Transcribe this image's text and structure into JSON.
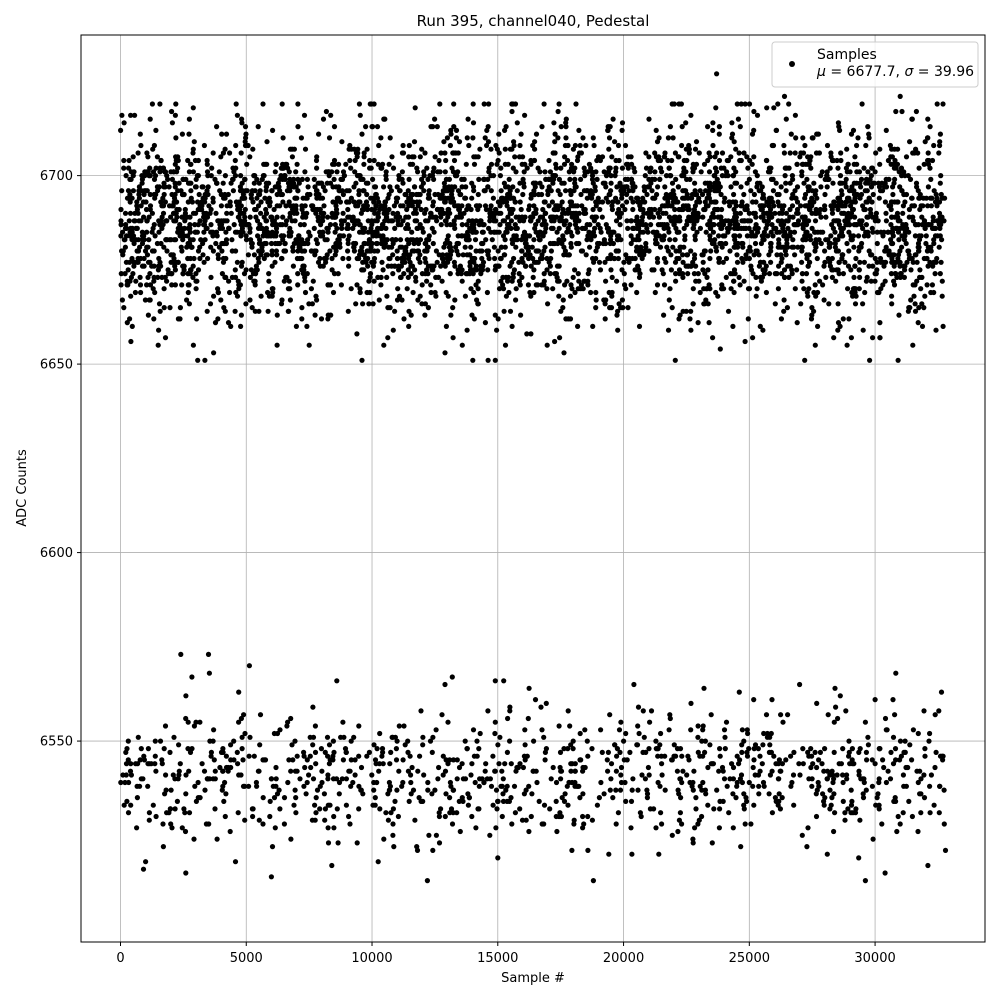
{
  "chart_data": {
    "type": "scatter",
    "title": "Run 395, channel040, Pedestal",
    "xlabel": "Sample #",
    "ylabel": "ADC Counts",
    "xlim": [
      -1570,
      34370
    ],
    "ylim": [
      6496.7,
      6737.3
    ],
    "xticks": [
      0,
      5000,
      10000,
      15000,
      20000,
      25000,
      30000
    ],
    "yticks": [
      6550,
      6600,
      6650,
      6700
    ],
    "grid": true,
    "legend_position": "top-right",
    "colors": {
      "points": "#000000",
      "grid": "#b0b0b0",
      "axes": "#000000",
      "legend_border": "#cccccc"
    },
    "legend": {
      "label": "Samples",
      "mu_symbol": "μ",
      "mu_value": " = 6677.7, ",
      "sigma_symbol": "σ",
      "sigma_value": " = 39.96"
    },
    "series": [
      {
        "name": "Samples",
        "marker": "circle",
        "x_range": [
          0,
          32768
        ],
        "bands": [
          {
            "center": 6688,
            "core_halfwidth": 17,
            "tail_min": 6651,
            "tail_max": 6719,
            "fraction": 0.8
          },
          {
            "center": 6541,
            "core_halfwidth": 12,
            "tail_min": 6513,
            "tail_max": 6573,
            "fraction": 0.2
          }
        ],
        "points": [
          {
            "x": 23700,
            "y": 6727
          },
          {
            "x": 3500,
            "y": 6573
          },
          {
            "x": 9600,
            "y": 6651
          },
          {
            "x": 14900,
            "y": 6651
          },
          {
            "x": 27200,
            "y": 6651
          },
          {
            "x": 12900,
            "y": 6653
          },
          {
            "x": 1500,
            "y": 6655
          },
          {
            "x": 2900,
            "y": 6655
          },
          {
            "x": 29900,
            "y": 6657
          },
          {
            "x": 31500,
            "y": 6655
          },
          {
            "x": 26400,
            "y": 6721
          },
          {
            "x": 31000,
            "y": 6721
          },
          {
            "x": 2200,
            "y": 6719
          },
          {
            "x": 4600,
            "y": 6719
          },
          {
            "x": 9500,
            "y": 6719
          },
          {
            "x": 15600,
            "y": 6719
          },
          {
            "x": 22300,
            "y": 6719
          },
          {
            "x": 32700,
            "y": 6719
          },
          {
            "x": 8600,
            "y": 6566
          },
          {
            "x": 14900,
            "y": 6566
          },
          {
            "x": 27000,
            "y": 6565
          },
          {
            "x": 12900,
            "y": 6565
          },
          {
            "x": 23200,
            "y": 6564
          },
          {
            "x": 2600,
            "y": 6562
          },
          {
            "x": 4700,
            "y": 6563
          },
          {
            "x": 24600,
            "y": 6563
          },
          {
            "x": 30000,
            "y": 6561
          },
          {
            "x": 16500,
            "y": 6561
          },
          {
            "x": 6000,
            "y": 6514
          },
          {
            "x": 12200,
            "y": 6513
          },
          {
            "x": 18800,
            "y": 6513
          },
          {
            "x": 30400,
            "y": 6515
          },
          {
            "x": 1000,
            "y": 6518
          },
          {
            "x": 8400,
            "y": 6517
          },
          {
            "x": 15000,
            "y": 6519
          },
          {
            "x": 32100,
            "y": 6517
          },
          {
            "x": 21400,
            "y": 6520
          },
          {
            "x": 28100,
            "y": 6520
          },
          {
            "x": 32800,
            "y": 6521
          }
        ]
      }
    ]
  }
}
